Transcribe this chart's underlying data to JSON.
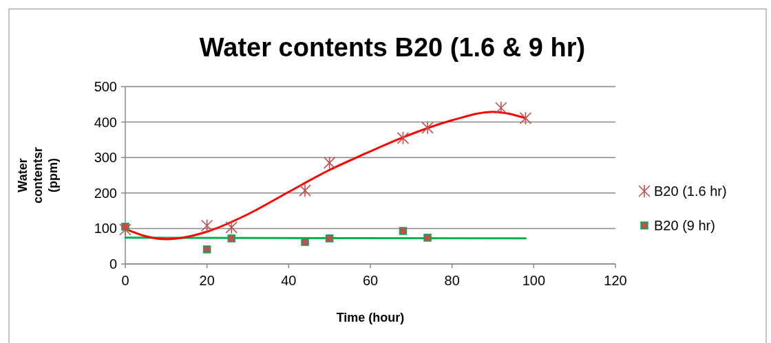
{
  "chart_data": {
    "type": "scatter",
    "title": "Water contents B20 (1.6 & 9 hr)",
    "xlabel": "Time (hour)",
    "ylabel": "Water contentsr (ppm)",
    "xlim": [
      0,
      120
    ],
    "xticks": [
      0,
      20,
      40,
      60,
      80,
      100,
      120
    ],
    "ylim": [
      0,
      500
    ],
    "yticks": [
      0,
      100,
      200,
      300,
      400,
      500
    ],
    "grid": "y",
    "legend": "right",
    "series": [
      {
        "name": "B20 (1.6 hr)",
        "marker": "cross",
        "color": "#c0504d",
        "x": [
          0,
          20,
          26,
          44,
          50,
          68,
          74,
          92,
          98
        ],
        "values": [
          97,
          108,
          103,
          207,
          285,
          355,
          384,
          440,
          411
        ]
      },
      {
        "name": "B20 (9 hr)",
        "marker": "square",
        "color": "#c0504d",
        "x": [
          0,
          20,
          26,
          44,
          50,
          68,
          74
        ],
        "values": [
          105,
          41,
          72,
          62,
          72,
          93,
          74
        ]
      },
      {
        "type": "line",
        "marker": "none",
        "color": "#ff0000",
        "x": [
          0,
          5,
          10,
          15,
          20,
          30,
          40,
          50,
          57,
          68,
          80,
          90,
          98
        ],
        "values": [
          99,
          78,
          70,
          76,
          91,
          140,
          203,
          265,
          302,
          357,
          405,
          429,
          411
        ]
      },
      {
        "type": "line",
        "marker": "none",
        "color": "#00b050",
        "x": [
          0,
          98
        ],
        "values": [
          74,
          72
        ]
      }
    ]
  }
}
